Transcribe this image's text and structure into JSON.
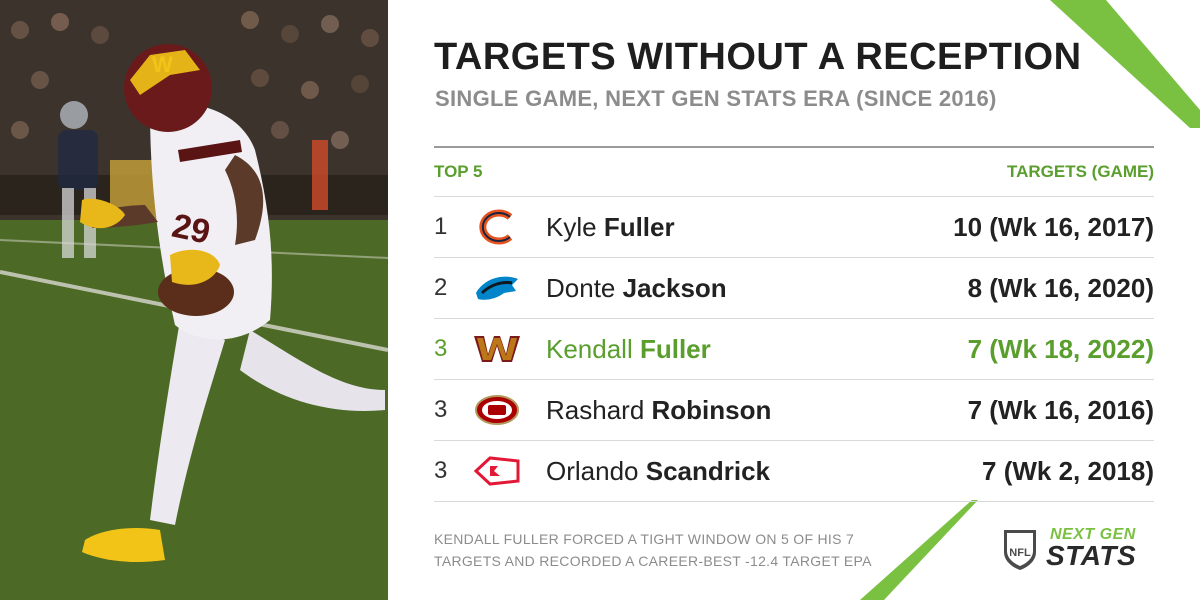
{
  "header": {
    "title": "TARGETS WITHOUT A RECEPTION",
    "subtitle": "SINGLE GAME, NEXT GEN STATS ERA (SINCE 2016)"
  },
  "table": {
    "col_left": "TOP 5",
    "col_right": "TARGETS (GAME)",
    "rows": [
      {
        "rank": "1",
        "first": "Kyle",
        "last": "Fuller",
        "value": "10 (Wk 16, 2017)",
        "team_icon": "bears-logo-icon"
      },
      {
        "rank": "2",
        "first": "Donte",
        "last": "Jackson",
        "value": "8 (Wk 16, 2020)",
        "team_icon": "panthers-logo-icon"
      },
      {
        "rank": "3",
        "first": "Kendall",
        "last": "Fuller",
        "value": "7 (Wk 18, 2022)",
        "team_icon": "commanders-logo-icon"
      },
      {
        "rank": "3",
        "first": "Rashard",
        "last": "Robinson",
        "value": "7 (Wk 16, 2016)",
        "team_icon": "49ers-logo-icon"
      },
      {
        "rank": "3",
        "first": "Orlando",
        "last": "Scandrick",
        "value": "7 (Wk 2, 2018)",
        "team_icon": "chiefs-logo-icon"
      }
    ]
  },
  "footer": {
    "note_line1": "KENDALL FULLER FORCED A TIGHT WINDOW ON 5 OF HIS 7",
    "note_line2": "TARGETS AND RECORDED A CAREER-BEST -12.4 TARGET EPA",
    "brand_next": "NEXT GEN",
    "brand_stats": "STATS",
    "nfl_shield_text": "NFL"
  },
  "photo": {
    "helmet_mark": "W",
    "jersey_number": "29",
    "icon": "football-player-photo"
  },
  "colors": {
    "accent_green": "#5a9e2e",
    "slash_green": "#7ac142",
    "text_dark": "#1e1e1e",
    "text_gray": "#8c8c8c"
  }
}
